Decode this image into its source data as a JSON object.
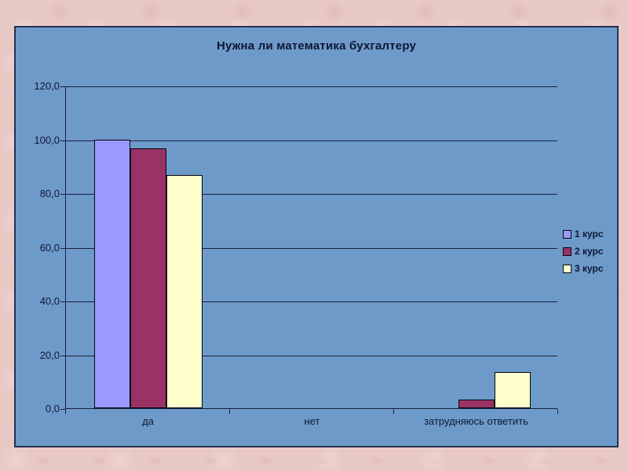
{
  "slide": {
    "background_color": "#e8c8c5"
  },
  "chart": {
    "panel_color": "#6e9ac9",
    "border_color": "#223352",
    "text_color": "#0f1733",
    "grid_color": "#16203c",
    "bar_border_color": "#05050f"
  },
  "chart_data": {
    "type": "bar",
    "title": "Нужна ли математика бухгалтеру",
    "categories": [
      "да",
      "нет",
      "затрудняюсь ответить"
    ],
    "series": [
      {
        "name": "1 курс",
        "color": "#9999ff",
        "values": [
          100.0,
          0.0,
          0.0
        ]
      },
      {
        "name": "2 курс",
        "color": "#993366",
        "values": [
          96.7,
          0.0,
          3.3
        ]
      },
      {
        "name": "3 курс",
        "color": "#ffffcc",
        "values": [
          86.7,
          0.0,
          13.3
        ]
      }
    ],
    "xlabel": "",
    "ylabel": "",
    "ylim": [
      0,
      120
    ],
    "ytick_step": 20,
    "ytick_labels": [
      "0,0",
      "20,0",
      "40,0",
      "60,0",
      "80,0",
      "100,0",
      "120,0"
    ],
    "grid": true,
    "legend_position": "right"
  }
}
